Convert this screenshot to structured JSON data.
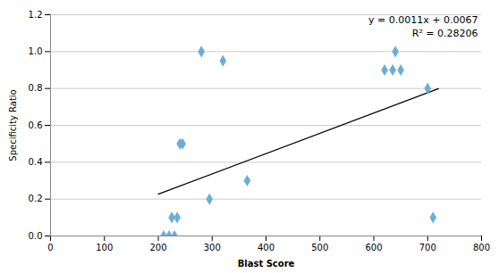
{
  "chart_data": {
    "type": "scatter",
    "x": [
      210,
      220,
      230,
      225,
      235,
      240,
      245,
      280,
      295,
      320,
      365,
      620,
      635,
      640,
      650,
      700,
      710
    ],
    "values": [
      0.0,
      0.0,
      0.0,
      0.1,
      0.1,
      0.5,
      0.5,
      1.0,
      0.2,
      0.95,
      0.3,
      0.9,
      0.9,
      1.0,
      0.9,
      0.8,
      0.1
    ],
    "color": "#6aaed6",
    "marker": "diamond",
    "trendline": {
      "x": [
        200,
        720
      ],
      "y": [
        0.2267,
        0.7987
      ],
      "color": "black"
    },
    "annotations": [
      "y = 0.0011x + 0.0067",
      "R² = 0.28206"
    ],
    "xlabel": "Blast Score",
    "ylabel": "Specificity Ratio",
    "xlim": [
      0,
      800
    ],
    "ylim": [
      0,
      1.2
    ],
    "xticks": [
      0,
      100,
      200,
      300,
      400,
      500,
      600,
      700,
      800
    ],
    "yticks": [
      {
        "value": 0,
        "label": "0.0"
      },
      0.2,
      0.4,
      0.6,
      0.8,
      {
        "value": 1,
        "label": "1.0"
      },
      1.2
    ],
    "grid": true
  }
}
